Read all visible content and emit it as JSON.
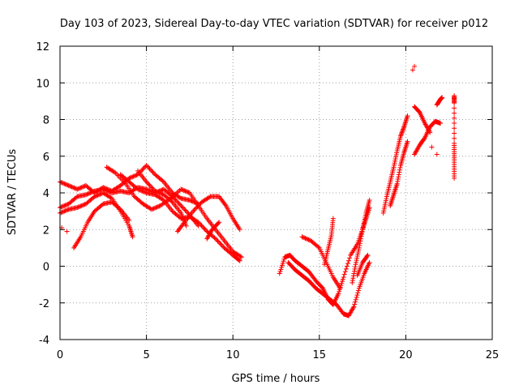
{
  "chart_data": {
    "type": "scatter",
    "title": "Day 103 of 2023, Sidereal Day-to-day VTEC variation (SDTVAR) for receiver p012",
    "xlabel": "GPS time / hours",
    "ylabel": "SDTVAR / TECUs",
    "xlim": [
      0,
      25
    ],
    "ylim": [
      -4,
      12
    ],
    "xticks": [
      0,
      5,
      10,
      15,
      20,
      25
    ],
    "yticks": [
      -4,
      -2,
      0,
      2,
      4,
      6,
      8,
      10,
      12
    ],
    "grid": true,
    "marker": "+",
    "series": [
      {
        "color": "#ff0000",
        "tracks": [
          [
            [
              0.0,
              4.6
            ],
            [
              0.5,
              4.4
            ],
            [
              1.0,
              4.2
            ],
            [
              1.5,
              4.4
            ],
            [
              2.0,
              4.0
            ],
            [
              2.5,
              4.3
            ],
            [
              3.0,
              4.1
            ],
            [
              3.5,
              4.4
            ],
            [
              4.0,
              4.8
            ],
            [
              4.5,
              5.0
            ],
            [
              5.0,
              5.5
            ],
            [
              5.5,
              5.0
            ],
            [
              6.0,
              4.6
            ],
            [
              6.5,
              4.0
            ],
            [
              7.0,
              3.7
            ],
            [
              7.5,
              3.6
            ],
            [
              8.0,
              3.4
            ]
          ],
          [
            [
              0.0,
              3.2
            ],
            [
              0.5,
              3.4
            ],
            [
              1.0,
              3.8
            ],
            [
              1.5,
              3.9
            ],
            [
              2.0,
              4.1
            ],
            [
              2.5,
              4.2
            ],
            [
              3.0,
              4.0
            ],
            [
              3.5,
              4.1
            ],
            [
              4.0,
              4.0
            ],
            [
              4.5,
              4.3
            ],
            [
              5.0,
              4.2
            ],
            [
              5.5,
              4.0
            ],
            [
              6.0,
              4.2
            ],
            [
              6.5,
              3.8
            ],
            [
              7.0,
              3.3
            ],
            [
              7.5,
              2.8
            ],
            [
              8.0,
              2.2
            ]
          ],
          [
            [
              0.0,
              2.9
            ],
            [
              0.5,
              3.1
            ],
            [
              1.0,
              3.2
            ],
            [
              1.5,
              3.4
            ],
            [
              2.0,
              3.8
            ],
            [
              2.5,
              4.0
            ],
            [
              3.0,
              3.7
            ],
            [
              3.5,
              3.0
            ],
            [
              4.0,
              2.2
            ],
            [
              4.2,
              1.6
            ]
          ],
          [
            [
              0.8,
              1.0
            ],
            [
              1.2,
              1.6
            ],
            [
              1.6,
              2.4
            ],
            [
              2.0,
              3.0
            ],
            [
              2.5,
              3.4
            ],
            [
              3.0,
              3.5
            ],
            [
              3.5,
              3.1
            ],
            [
              4.0,
              2.5
            ]
          ],
          [
            [
              0.1,
              2.1
            ],
            [
              0.4,
              1.9
            ]
          ],
          [
            [
              2.7,
              5.4
            ],
            [
              3.2,
              5.1
            ],
            [
              3.8,
              4.5
            ],
            [
              4.3,
              3.8
            ],
            [
              4.8,
              3.4
            ],
            [
              5.3,
              3.1
            ],
            [
              5.8,
              3.3
            ],
            [
              6.4,
              3.7
            ],
            [
              7.0,
              4.2
            ],
            [
              7.5,
              4.0
            ],
            [
              8.0,
              3.3
            ],
            [
              8.5,
              2.6
            ],
            [
              9.0,
              2.0
            ],
            [
              9.5,
              1.4
            ],
            [
              10.0,
              0.8
            ],
            [
              10.5,
              0.5
            ]
          ],
          [
            [
              3.5,
              5.0
            ],
            [
              4.0,
              4.6
            ],
            [
              4.5,
              4.2
            ],
            [
              5.0,
              4.0
            ],
            [
              5.5,
              3.9
            ],
            [
              6.0,
              3.6
            ],
            [
              6.5,
              3.0
            ],
            [
              7.0,
              2.6
            ],
            [
              7.5,
              2.7
            ],
            [
              8.0,
              2.4
            ],
            [
              8.5,
              1.9
            ],
            [
              9.0,
              1.5
            ],
            [
              9.5,
              1.0
            ],
            [
              10.0,
              0.6
            ],
            [
              10.4,
              0.3
            ]
          ],
          [
            [
              4.5,
              5.2
            ],
            [
              5.0,
              4.6
            ],
            [
              5.5,
              4.1
            ],
            [
              6.0,
              3.9
            ],
            [
              6.5,
              3.5
            ],
            [
              7.0,
              2.9
            ],
            [
              7.3,
              2.2
            ]
          ],
          [
            [
              6.8,
              1.9
            ],
            [
              7.2,
              2.4
            ],
            [
              7.7,
              3.0
            ],
            [
              8.2,
              3.5
            ],
            [
              8.7,
              3.8
            ],
            [
              9.2,
              3.8
            ],
            [
              9.6,
              3.3
            ],
            [
              10.0,
              2.6
            ],
            [
              10.4,
              2.0
            ]
          ],
          [
            [
              8.5,
              1.5
            ],
            [
              8.8,
              2.0
            ],
            [
              9.2,
              2.4
            ]
          ],
          [
            [
              12.7,
              -0.4
            ],
            [
              13.0,
              0.5
            ],
            [
              13.3,
              0.6
            ],
            [
              13.6,
              0.3
            ],
            [
              14.0,
              0.0
            ],
            [
              14.4,
              -0.3
            ],
            [
              14.8,
              -0.8
            ],
            [
              15.2,
              -1.2
            ],
            [
              15.5,
              -1.8
            ],
            [
              15.8,
              -2.1
            ],
            [
              16.1,
              -1.5
            ],
            [
              16.4,
              -0.6
            ],
            [
              16.8,
              0.6
            ],
            [
              17.2,
              1.2
            ],
            [
              17.5,
              2.0
            ],
            [
              17.7,
              2.9
            ],
            [
              17.9,
              3.6
            ]
          ],
          [
            [
              13.2,
              0.2
            ],
            [
              13.6,
              -0.2
            ],
            [
              14.0,
              -0.5
            ],
            [
              14.4,
              -0.8
            ],
            [
              14.8,
              -1.2
            ],
            [
              15.2,
              -1.5
            ],
            [
              15.6,
              -1.8
            ],
            [
              16.0,
              -2.1
            ],
            [
              16.4,
              -2.6
            ],
            [
              16.7,
              -2.7
            ],
            [
              17.0,
              -2.2
            ],
            [
              17.3,
              -1.2
            ],
            [
              17.6,
              -0.4
            ],
            [
              17.9,
              0.2
            ]
          ],
          [
            [
              14.0,
              1.6
            ],
            [
              14.5,
              1.4
            ],
            [
              15.0,
              1.0
            ],
            [
              15.4,
              0.2
            ],
            [
              15.8,
              -0.6
            ],
            [
              16.2,
              -1.2
            ]
          ],
          [
            [
              15.3,
              0.1
            ],
            [
              15.5,
              0.9
            ],
            [
              15.7,
              1.7
            ],
            [
              15.8,
              2.6
            ]
          ],
          [
            [
              16.9,
              -0.9
            ],
            [
              17.1,
              0.1
            ],
            [
              17.3,
              1.0
            ],
            [
              17.5,
              2.0
            ],
            [
              17.7,
              2.6
            ],
            [
              17.9,
              3.2
            ]
          ],
          [
            [
              17.2,
              -0.5
            ],
            [
              17.5,
              0.2
            ],
            [
              17.8,
              0.6
            ]
          ],
          [
            [
              18.7,
              2.9
            ],
            [
              18.9,
              3.8
            ],
            [
              19.1,
              4.6
            ],
            [
              19.3,
              5.4
            ],
            [
              19.5,
              6.3
            ],
            [
              19.7,
              7.1
            ],
            [
              19.9,
              7.6
            ],
            [
              20.1,
              8.2
            ]
          ],
          [
            [
              19.1,
              3.3
            ],
            [
              19.3,
              3.9
            ],
            [
              19.5,
              4.5
            ],
            [
              19.7,
              5.5
            ],
            [
              19.9,
              6.2
            ],
            [
              20.1,
              6.8
            ]
          ],
          [
            [
              20.5,
              6.1
            ],
            [
              20.8,
              6.6
            ],
            [
              21.1,
              7.0
            ],
            [
              21.4,
              7.6
            ],
            [
              21.7,
              7.9
            ],
            [
              22.0,
              7.8
            ]
          ],
          [
            [
              20.5,
              8.7
            ],
            [
              20.8,
              8.4
            ],
            [
              21.1,
              7.8
            ],
            [
              21.4,
              7.3
            ]
          ],
          [
            [
              20.4,
              10.7
            ],
            [
              20.5,
              10.9
            ]
          ],
          [
            [
              21.8,
              8.8
            ],
            [
              22.0,
              9.1
            ],
            [
              22.1,
              9.2
            ]
          ],
          [
            [
              21.5,
              6.5
            ],
            [
              21.8,
              6.1
            ]
          ],
          [
            [
              22.8,
              9.3
            ],
            [
              22.8,
              8.9
            ],
            [
              22.8,
              6.7
            ],
            [
              22.8,
              5.8
            ],
            [
              22.8,
              4.8
            ]
          ]
        ]
      }
    ]
  }
}
